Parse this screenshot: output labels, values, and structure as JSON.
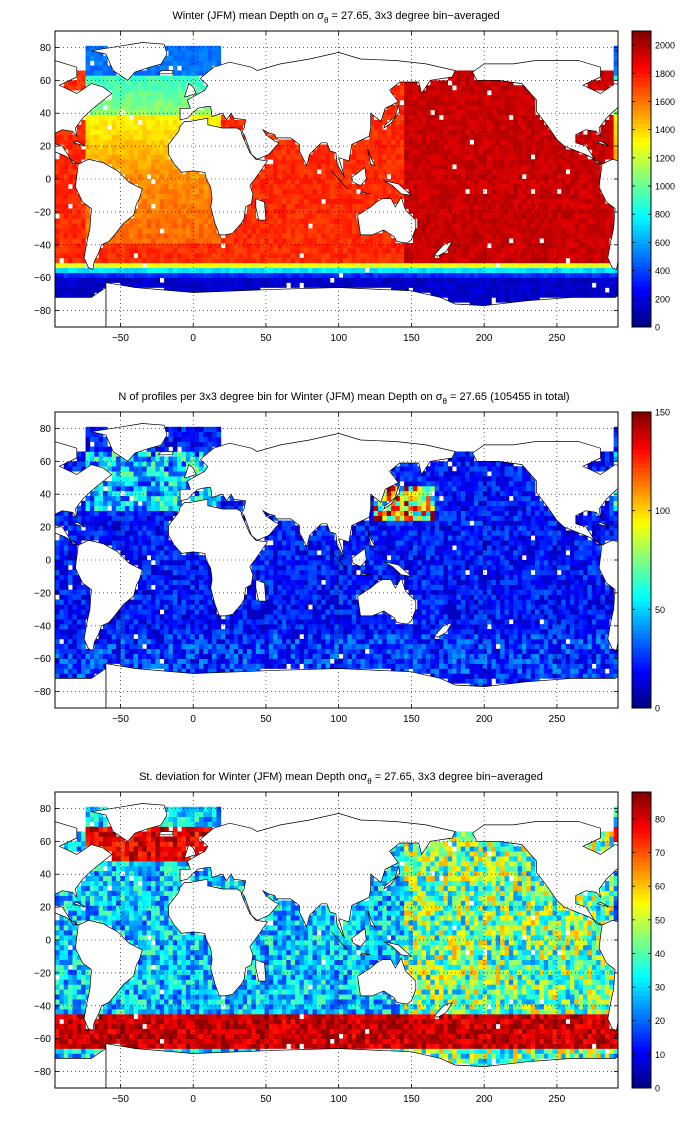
{
  "chart_data": [
    {
      "type": "heatmap",
      "title": "Winter (JFM) mean Depth on σθ = 27.65, 3x3 degree bin−averaged",
      "title_parts": {
        "pre": "Winter (JFM) mean Depth on σ",
        "sub": "θ",
        "post": " = 27.65, 3x3 degree bin−averaged"
      },
      "xlim": [
        -95,
        292
      ],
      "ylim": [
        -90,
        90
      ],
      "xticks": [
        -50,
        0,
        50,
        100,
        150,
        200,
        250
      ],
      "xtick_labels": [
        "−50",
        "0",
        "50",
        "100",
        "150",
        "200",
        "250"
      ],
      "yticks": [
        -80,
        -60,
        -40,
        -20,
        0,
        20,
        40,
        60,
        80
      ],
      "ytick_labels": [
        "−80",
        "−60",
        "−40",
        "−20",
        "0",
        "20",
        "40",
        "60",
        "80"
      ],
      "grid": true,
      "colorbar": {
        "min": 0,
        "max": 2100,
        "ticks": [
          0,
          200,
          400,
          600,
          800,
          1000,
          1200,
          1400,
          1600,
          1800,
          2000
        ],
        "tick_labels": [
          "0",
          "200",
          "400",
          "600",
          "800",
          "1000",
          "1200",
          "1400",
          "1600",
          "1800",
          "2000"
        ],
        "colormap": "jet"
      },
      "field": "depth",
      "regional_values": [
        {
          "region": "Southern Ocean south of 60S",
          "value": 150
        },
        {
          "region": "Subantarctic front 50S-55S",
          "value": 800
        },
        {
          "region": "South Atlantic 0-40S",
          "value": 1550
        },
        {
          "region": "South Atlantic 40S-50S",
          "value": 1750
        },
        {
          "region": "North Atlantic 40N-65N",
          "value": 1100
        },
        {
          "region": "Labrador/Nordic seas",
          "value": 500
        },
        {
          "region": "Indian Ocean",
          "value": 1750
        },
        {
          "region": "Pacific Ocean",
          "value": 1950
        }
      ]
    },
    {
      "type": "heatmap",
      "title": "N of profiles per 3x3 degree bin for Winter (JFM) mean Depth on σθ = 27.65 (105455 in total)",
      "title_parts": {
        "pre": "N of profiles per 3x3 degree bin for Winter (JFM) mean Depth on σ",
        "sub": "θ",
        "post": " = 27.65 (105455 in total)"
      },
      "xlim": [
        -95,
        292
      ],
      "ylim": [
        -90,
        90
      ],
      "xticks": [
        -50,
        0,
        50,
        100,
        150,
        200,
        250
      ],
      "xtick_labels": [
        "−50",
        "0",
        "50",
        "100",
        "150",
        "200",
        "250"
      ],
      "yticks": [
        -80,
        -60,
        -40,
        -20,
        0,
        20,
        40,
        60,
        80
      ],
      "ytick_labels": [
        "−80",
        "−60",
        "−40",
        "−20",
        "0",
        "20",
        "40",
        "60",
        "80"
      ],
      "grid": true,
      "colorbar": {
        "min": 0,
        "max": 150,
        "ticks": [
          0,
          50,
          100,
          150
        ],
        "tick_labels": [
          "0",
          "50",
          "100",
          "150"
        ],
        "colormap": "jet"
      },
      "field": "count",
      "total_profiles": 105455,
      "regional_values": [
        {
          "region": "Open ocean typical",
          "value": 20
        },
        {
          "region": "North Atlantic",
          "value": 45
        },
        {
          "region": "Kuroshio region",
          "value": 90
        },
        {
          "region": "Southern Ocean",
          "value": 25
        }
      ]
    },
    {
      "type": "heatmap",
      "title": "St. deviation for Winter (JFM) mean Depth onσθ = 27.65, 3x3 degree bin−averaged",
      "title_parts": {
        "pre": "St. deviation for Winter (JFM) mean Depth onσ",
        "sub": "θ",
        "post": " = 27.65, 3x3 degree bin−averaged"
      },
      "xlim": [
        -95,
        292
      ],
      "ylim": [
        -90,
        90
      ],
      "xticks": [
        -50,
        0,
        50,
        100,
        150,
        200,
        250
      ],
      "xtick_labels": [
        "−50",
        "0",
        "50",
        "100",
        "150",
        "200",
        "250"
      ],
      "yticks": [
        -80,
        -60,
        -40,
        -20,
        0,
        20,
        40,
        60,
        80
      ],
      "ytick_labels": [
        "−80",
        "−60",
        "−40",
        "−20",
        "0",
        "20",
        "40",
        "60",
        "80"
      ],
      "grid": true,
      "colorbar": {
        "min": 0,
        "max": 88,
        "ticks": [
          0,
          10,
          20,
          30,
          40,
          50,
          60,
          70,
          80
        ],
        "tick_labels": [
          "0",
          "10",
          "20",
          "30",
          "40",
          "50",
          "60",
          "70",
          "80"
        ],
        "colormap": "jet"
      },
      "field": "std",
      "regional_values": [
        {
          "region": "Antarctic Circumpolar Current 45S-65S",
          "value": 88
        },
        {
          "region": "North Atlantic subpolar 50N-65N",
          "value": 88
        },
        {
          "region": "Pacific interior",
          "value": 45
        },
        {
          "region": "Atlantic/Indian interior",
          "value": 30
        }
      ]
    }
  ]
}
